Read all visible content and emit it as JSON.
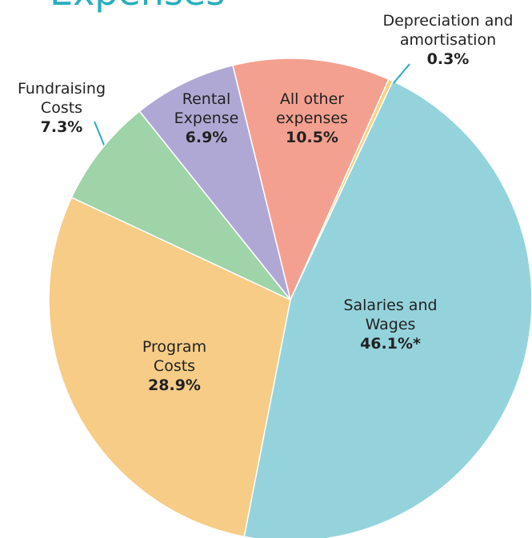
{
  "chart_data": {
    "type": "pie",
    "title": "Expenses",
    "categories": [
      "Depreciation and\namortisation",
      "Salaries and\nWages",
      "Program\nCosts",
      "Fundraising\nCosts",
      "Rental\nExpense",
      "All other\nexpenses"
    ],
    "values": [
      0.3,
      46.1,
      28.9,
      7.3,
      6.9,
      10.5
    ],
    "value_labels": [
      "0.3%",
      "46.1%*",
      "28.9%",
      "7.3%",
      "6.9%",
      "10.5%"
    ],
    "colors": [
      "#f9d27e",
      "#95d3dc",
      "#f6cc87",
      "#9fd3a8",
      "#b0a8d4",
      "#f4a090"
    ]
  }
}
